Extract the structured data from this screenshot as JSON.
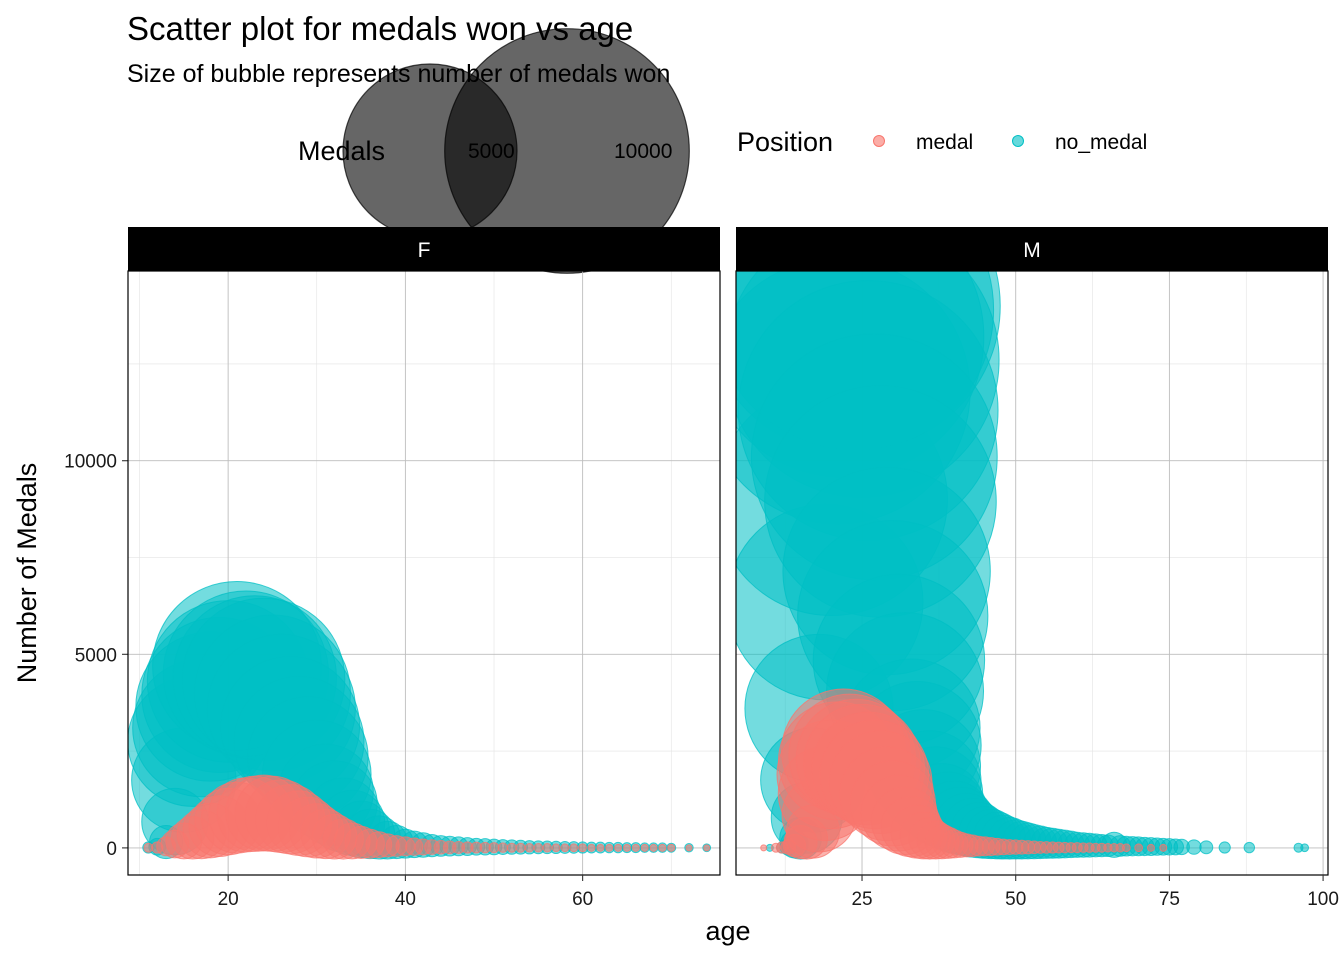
{
  "title": "Scatter plot for medals won vs age",
  "subtitle": "Size of bubble represents number of medals won",
  "legend": {
    "size_title": "Medals",
    "size_breaks": [
      5000,
      10000
    ],
    "size_labels": [
      "5000",
      "10000"
    ],
    "color_title": "Position",
    "color_items": [
      {
        "label": "medal",
        "color": "#F8766D"
      },
      {
        "label": "no_medal",
        "color": "#00BFC4"
      }
    ]
  },
  "chart_data": {
    "type": "scatter",
    "xlabel": "age",
    "ylabel": "Number of Medals",
    "size_variable": "Number of Medals",
    "ylim": [
      -700,
      14900
    ],
    "y_ticks": [
      0,
      5000,
      10000
    ],
    "y_tick_labels": [
      "0",
      "5000",
      "10000"
    ],
    "grid": true,
    "legend_position": "top",
    "colors": {
      "medal": "#F8766D",
      "no_medal": "#00BFC4"
    },
    "facets": [
      {
        "label": "F",
        "xlim": [
          8.7,
          75.5
        ],
        "x_ticks": [
          20,
          40,
          60
        ],
        "x_tick_labels": [
          "20",
          "40",
          "60"
        ],
        "series": [
          {
            "name": "medal",
            "x": [
              11,
              12,
              13,
              14,
              15,
              16,
              17,
              18,
              19,
              20,
              21,
              22,
              23,
              24,
              25,
              26,
              27,
              28,
              29,
              30,
              31,
              32,
              33,
              34,
              35,
              36,
              37,
              38,
              39,
              40,
              41,
              42,
              43,
              44,
              45,
              46,
              47,
              48,
              49,
              50,
              51,
              52,
              53,
              54,
              55,
              56,
              57,
              58,
              59,
              60,
              61,
              62,
              63,
              64,
              65,
              66,
              67,
              68,
              69,
              70,
              72,
              74
            ],
            "y": [
              5,
              10,
              40,
              100,
              180,
              260,
              350,
              450,
              560,
              680,
              780,
              850,
              880,
              900,
              880,
              820,
              740,
              640,
              540,
              440,
              360,
              290,
              230,
              180,
              140,
              110,
              85,
              65,
              50,
              40,
              32,
              26,
              21,
              17,
              14,
              12,
              10,
              9,
              8,
              7,
              6,
              5,
              5,
              4,
              4,
              4,
              3,
              3,
              3,
              3,
              2,
              2,
              2,
              2,
              2,
              2,
              2,
              2,
              2,
              2,
              1,
              1
            ]
          },
          {
            "name": "no_medal",
            "x": [
              11,
              12,
              13,
              14,
              15,
              16,
              17,
              18,
              19,
              20,
              21,
              22,
              23,
              24,
              25,
              26,
              27,
              28,
              29,
              30,
              31,
              32,
              33,
              34,
              35,
              36,
              37,
              38,
              39,
              40,
              41,
              42,
              43,
              44,
              45,
              46,
              47,
              48,
              49,
              50,
              51,
              52,
              53,
              54,
              55,
              56,
              57,
              58,
              59,
              60,
              61,
              62,
              63,
              64,
              65,
              66,
              67,
              68,
              69,
              70,
              72,
              74
            ],
            "y": [
              10,
              30,
              150,
              680,
              1750,
              2750,
              3100,
              3650,
              3950,
              4300,
              4700,
              4500,
              4400,
              4350,
              4000,
              3600,
              3150,
              2750,
              2350,
              1900,
              1450,
              1150,
              850,
              650,
              480,
              360,
              270,
              200,
              150,
              110,
              90,
              75,
              60,
              50,
              45,
              40,
              35,
              30,
              28,
              25,
              22,
              20,
              18,
              16,
              15,
              14,
              13,
              12,
              11,
              10,
              9,
              9,
              8,
              8,
              7,
              7,
              6,
              6,
              6,
              5,
              4,
              3
            ]
          }
        ]
      },
      {
        "label": "M",
        "xlim": [
          4.5,
          100.8
        ],
        "x_ticks": [
          25,
          50,
          75,
          100
        ],
        "x_tick_labels": [
          "25",
          "50",
          "75",
          "100"
        ],
        "series": [
          {
            "name": "medal",
            "x": [
              9,
              11,
              12,
              13,
              14,
              15,
              16,
              17,
              18,
              19,
              20,
              21,
              22,
              23,
              24,
              25,
              26,
              27,
              28,
              29,
              30,
              31,
              32,
              33,
              34,
              35,
              36,
              37,
              38,
              39,
              40,
              41,
              42,
              43,
              44,
              45,
              46,
              47,
              48,
              49,
              50,
              51,
              52,
              53,
              54,
              55,
              56,
              57,
              58,
              59,
              60,
              61,
              62,
              63,
              64,
              65,
              66,
              67,
              68,
              70,
              72,
              74
            ],
            "y": [
              1,
              5,
              10,
              20,
              60,
              150,
              250,
              420,
              850,
              1400,
              1900,
              2250,
              2500,
              2400,
              2300,
              2200,
              2050,
              1900,
              1700,
              1400,
              1150,
              900,
              700,
              550,
              420,
              320,
              250,
              200,
              160,
              130,
              100,
              80,
              65,
              55,
              45,
              40,
              35,
              30,
              25,
              22,
              20,
              18,
              16,
              14,
              12,
              11,
              10,
              9,
              8,
              7,
              7,
              6,
              6,
              5,
              5,
              4,
              4,
              4,
              3,
              3,
              2,
              2
            ]
          },
          {
            "name": "no_medal",
            "x": [
              10,
              12,
              13,
              14,
              15,
              16,
              17,
              18,
              19,
              20,
              21,
              22,
              23,
              24,
              25,
              26,
              27,
              28,
              29,
              30,
              31,
              32,
              33,
              34,
              35,
              36,
              37,
              38,
              39,
              40,
              41,
              42,
              43,
              44,
              45,
              46,
              47,
              48,
              49,
              50,
              51,
              52,
              53,
              54,
              55,
              56,
              57,
              58,
              59,
              60,
              61,
              62,
              63,
              64,
              65,
              66,
              67,
              68,
              69,
              70,
              71,
              72,
              73,
              74,
              75,
              76,
              77,
              79,
              81,
              84,
              88,
              96,
              97
            ],
            "y": [
              2,
              10,
              30,
              100,
              250,
              780,
              1750,
              3600,
              6350,
              9000,
              11800,
              13200,
              13900,
              14000,
              12600,
              11300,
              10100,
              8950,
              7150,
              6000,
              4850,
              4050,
              3100,
              2650,
              2100,
              1700,
              1400,
              1100,
              950,
              800,
              700,
              600,
              520,
              460,
              400,
              360,
              320,
              280,
              250,
              220,
              200,
              180,
              160,
              145,
              130,
              120,
              110,
              100,
              90,
              80,
              75,
              70,
              65,
              60,
              55,
              80,
              50,
              45,
              42,
              40,
              37,
              35,
              32,
              30,
              28,
              26,
              24,
              20,
              15,
              10,
              8,
              5,
              3
            ]
          }
        ]
      }
    ]
  }
}
